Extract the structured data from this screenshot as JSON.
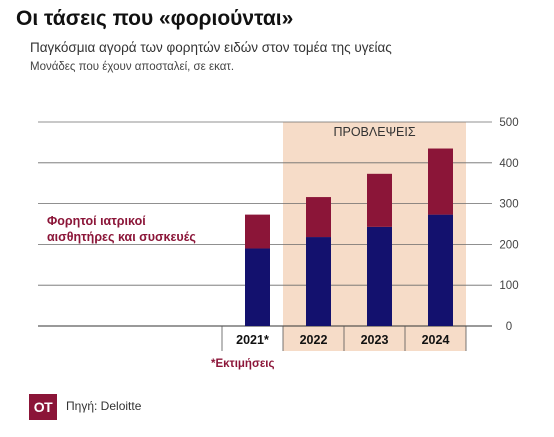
{
  "title": "Οι τάσεις που «φοριούνται»",
  "subtitle": "Παγκόσμια αγορά των φορητών ειδών στον τομέα της υγείας",
  "unit_note": "Μονάδες που έχουν αποσταλεί, σε εκατ.",
  "series_label_lines": [
    "Φορητοί ιατρικοί",
    "αισθητήρες και συσκευές"
  ],
  "footnote": "*Εκτιμήσεις",
  "logo_text": "OT",
  "source": "Πηγή: Deloitte",
  "colors": {
    "bottom": "#13116e",
    "top": "#8b1538",
    "forecast_bg": "#f6dcc8"
  },
  "chart_data": {
    "type": "bar",
    "stacked": true,
    "categories": [
      "2021*",
      "2022",
      "2023",
      "2024"
    ],
    "series": [
      {
        "values": [
          190,
          218,
          243,
          273
        ]
      },
      {
        "name": "Φορητοί ιατρικοί αισθητήρες και συσκευές",
        "values": [
          83,
          98,
          130,
          162
        ]
      }
    ],
    "ylim": [
      0,
      500
    ],
    "yticks": [
      0,
      100,
      200,
      300,
      400,
      500
    ],
    "y_axis_position": "right",
    "grid": true,
    "forecast_label": "ΠΡΟΒΛΕΨΕΙΣ",
    "forecast_categories": [
      "2022",
      "2023",
      "2024"
    ]
  }
}
